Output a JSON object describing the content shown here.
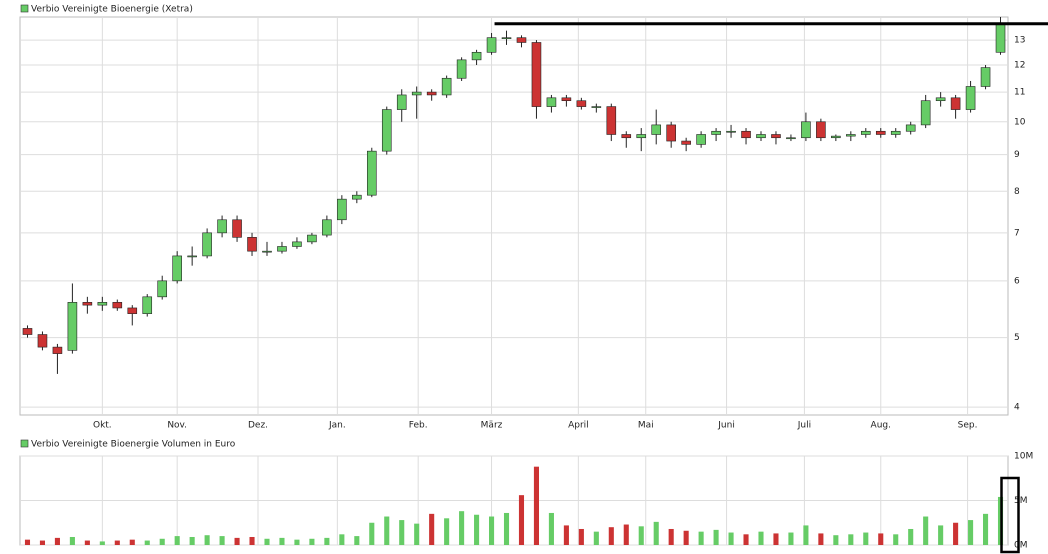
{
  "chart_data": [
    {
      "type": "candlestick",
      "title": "Verbio Vereinigte Bioenergie (Xetra)",
      "color": "#66cc66",
      "up_color": "#66cc66",
      "down_color": "#cc3333",
      "xlim": [
        -0.5,
        65.5
      ],
      "xticks": [
        {
          "value": 5.0,
          "label": "Okt."
        },
        {
          "value": 10.0,
          "label": "Nov."
        },
        {
          "value": 15.4,
          "label": "Dez."
        },
        {
          "value": 20.7,
          "label": "Jan."
        },
        {
          "value": 26.1,
          "label": "Feb."
        },
        {
          "value": 31.0,
          "label": "März"
        },
        {
          "value": 36.8,
          "label": "April"
        },
        {
          "value": 41.3,
          "label": "Mai"
        },
        {
          "value": 46.7,
          "label": "Juni"
        },
        {
          "value": 51.9,
          "label": "Juli"
        },
        {
          "value": 57.0,
          "label": "Aug."
        },
        {
          "value": 62.8,
          "label": "Sep."
        }
      ],
      "ylim": [
        3.9,
        14
      ],
      "yticks": [
        4,
        5,
        6,
        7,
        8,
        9,
        10,
        11,
        12,
        13
      ],
      "log_scale": true,
      "grid": true,
      "open": [
        5.15,
        5.05,
        4.85,
        4.8,
        5.6,
        5.55,
        5.6,
        5.5,
        5.4,
        5.7,
        6.0,
        6.5,
        6.5,
        7.0,
        7.3,
        6.9,
        6.6,
        6.6,
        6.7,
        6.8,
        6.95,
        7.3,
        7.8,
        7.9,
        9.1,
        10.4,
        10.9,
        11.0,
        10.9,
        11.5,
        12.2,
        12.5,
        13.1,
        13.1,
        12.9,
        10.5,
        10.8,
        10.7,
        10.5,
        10.5,
        9.6,
        9.5,
        9.6,
        9.9,
        9.4,
        9.3,
        9.6,
        9.7,
        9.7,
        9.5,
        9.6,
        9.5,
        9.5,
        10.0,
        9.5,
        9.55,
        9.6,
        9.7,
        9.6,
        9.7,
        9.9,
        10.7,
        10.8,
        10.4,
        11.2,
        12.5
      ],
      "high": [
        5.2,
        5.1,
        4.9,
        5.95,
        5.7,
        5.7,
        5.65,
        5.55,
        5.75,
        6.1,
        6.6,
        6.7,
        7.1,
        7.4,
        7.4,
        7.0,
        6.8,
        6.8,
        6.9,
        7.0,
        7.4,
        7.9,
        8.0,
        9.2,
        10.5,
        11.1,
        11.2,
        11.1,
        11.6,
        12.3,
        12.6,
        13.3,
        13.4,
        13.2,
        13.0,
        10.9,
        10.9,
        10.8,
        10.6,
        10.6,
        9.7,
        9.8,
        10.4,
        10.0,
        9.5,
        9.7,
        9.8,
        9.9,
        9.8,
        9.7,
        9.7,
        9.6,
        10.3,
        10.1,
        9.6,
        9.7,
        9.8,
        9.8,
        9.8,
        10.0,
        10.9,
        11.0,
        10.9,
        11.4,
        12.0,
        14.0
      ],
      "low": [
        5.0,
        4.8,
        4.45,
        4.75,
        5.4,
        5.45,
        5.45,
        5.2,
        5.35,
        5.65,
        5.95,
        6.3,
        6.45,
        6.9,
        6.8,
        6.5,
        6.5,
        6.55,
        6.65,
        6.75,
        6.9,
        7.2,
        7.7,
        7.85,
        9.0,
        10.0,
        10.1,
        10.7,
        10.8,
        11.4,
        12.0,
        12.4,
        12.8,
        12.7,
        10.1,
        10.3,
        10.5,
        10.4,
        10.3,
        9.4,
        9.2,
        9.1,
        9.3,
        9.2,
        9.1,
        9.2,
        9.4,
        9.5,
        9.3,
        9.4,
        9.3,
        9.4,
        9.4,
        9.4,
        9.4,
        9.4,
        9.5,
        9.5,
        9.5,
        9.6,
        9.8,
        10.5,
        10.1,
        10.3,
        11.1,
        12.4
      ],
      "close": [
        5.05,
        4.85,
        4.75,
        5.6,
        5.55,
        5.6,
        5.5,
        5.4,
        5.7,
        6.0,
        6.5,
        6.5,
        7.0,
        7.3,
        6.9,
        6.6,
        6.6,
        6.7,
        6.8,
        6.95,
        7.3,
        7.8,
        7.9,
        9.1,
        10.4,
        10.9,
        11.0,
        10.9,
        11.5,
        12.2,
        12.5,
        13.1,
        13.1,
        12.9,
        10.5,
        10.8,
        10.7,
        10.5,
        10.5,
        9.6,
        9.5,
        9.6,
        9.9,
        9.4,
        9.3,
        9.6,
        9.7,
        9.7,
        9.5,
        9.6,
        9.5,
        9.5,
        10.0,
        9.5,
        9.55,
        9.6,
        9.7,
        9.6,
        9.7,
        9.9,
        10.7,
        10.8,
        10.4,
        11.2,
        11.9,
        13.7
      ],
      "resistance_line": {
        "y": 13.7,
        "x_start": 31.2,
        "color": "#000000"
      }
    },
    {
      "type": "bar",
      "title": "Verbio Vereinigte Bioenergie Volumen in Euro",
      "color": "#66cc66",
      "xlim": [
        -0.5,
        65.5
      ],
      "values": [
        600000,
        500000,
        800000,
        900000,
        500000,
        400000,
        500000,
        600000,
        500000,
        700000,
        1000000,
        900000,
        1100000,
        1000000,
        800000,
        900000,
        700000,
        800000,
        600000,
        700000,
        800000,
        1200000,
        1000000,
        2500000,
        3200000,
        2800000,
        2400000,
        3500000,
        3000000,
        3800000,
        3400000,
        3200000,
        3600000,
        5600000,
        8800000,
        3600000,
        2200000,
        1800000,
        1500000,
        2000000,
        2300000,
        2100000,
        2600000,
        1800000,
        1600000,
        1500000,
        1700000,
        1400000,
        1200000,
        1500000,
        1300000,
        1400000,
        2200000,
        1300000,
        1100000,
        1200000,
        1400000,
        1300000,
        1200000,
        1800000,
        3200000,
        2200000,
        2500000,
        2800000,
        3500000,
        5400000
      ],
      "ylim": [
        0,
        10000000
      ],
      "yticks": [
        {
          "value": 0,
          "label": "0M"
        },
        {
          "value": 5000000,
          "label": "5M"
        },
        {
          "value": 10000000,
          "label": "10M"
        }
      ],
      "grid": true
    }
  ]
}
